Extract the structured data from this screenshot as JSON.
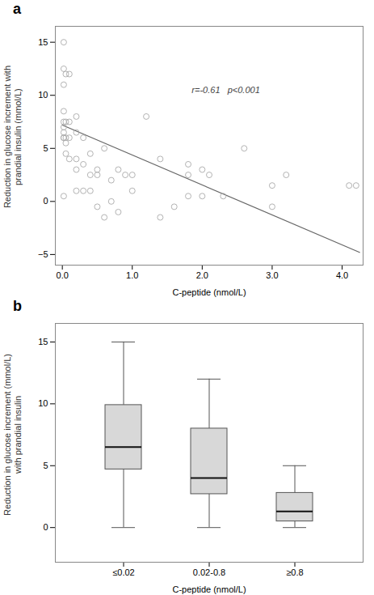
{
  "chart_data": [
    {
      "type": "scatter",
      "title": "a",
      "x": [
        0.02,
        0.02,
        0.02,
        0.02,
        0.02,
        0.02,
        0.02,
        0.02,
        0.02,
        0.02,
        0.05,
        0.05,
        0.05,
        0.05,
        0.05,
        0.1,
        0.1,
        0.1,
        0.1,
        0.2,
        0.2,
        0.2,
        0.2,
        0.2,
        0.3,
        0.3,
        0.3,
        0.4,
        0.4,
        0.4,
        0.5,
        0.5,
        0.5,
        0.6,
        0.6,
        0.7,
        0.7,
        0.8,
        0.8,
        0.9,
        1.0,
        1.0,
        1.2,
        1.4,
        1.4,
        1.6,
        1.8,
        1.8,
        1.8,
        2.0,
        2.0,
        2.1,
        2.3,
        2.6,
        3.0,
        3.0,
        3.2,
        4.1,
        4.2
      ],
      "values": [
        0.5,
        6.0,
        6.0,
        6.5,
        7.0,
        7.5,
        8.5,
        11.0,
        12.5,
        15.0,
        4.5,
        5.5,
        6.0,
        7.5,
        12.0,
        4.0,
        6.0,
        7.5,
        12.0,
        1.0,
        3.0,
        4.0,
        6.5,
        8.0,
        1.0,
        3.5,
        6.0,
        1.0,
        2.5,
        4.5,
        -0.5,
        2.5,
        3.0,
        -1.5,
        5.0,
        0.0,
        2.0,
        -1.0,
        3.0,
        2.5,
        1.0,
        2.5,
        8.0,
        -1.5,
        4.0,
        -0.5,
        0.5,
        2.5,
        3.5,
        0.5,
        3.0,
        2.5,
        0.5,
        5.0,
        -0.5,
        1.5,
        2.5,
        1.5,
        1.5
      ],
      "color": "#aaaaaa",
      "fit_line": {
        "x": [
          0.0,
          4.25
        ],
        "values": [
          7.2,
          -4.8
        ],
        "color": "#666666"
      },
      "annotations": [
        {
          "text": "r=-0.61   p<0.001",
          "x": 1.85,
          "y": 10.5,
          "color": "#444444"
        }
      ],
      "xlabel": "C-peptide (nmol/L)",
      "ylabel": "Reduction in glucose increment with\nprandial insulin (mmol/L)",
      "xlim": [
        -0.1,
        4.3
      ],
      "ylim": [
        -6.0,
        16.5
      ],
      "xticks": [
        0,
        1,
        2,
        3,
        4
      ],
      "yticks": [
        -5,
        0,
        5,
        10,
        15
      ]
    },
    {
      "type": "box",
      "title": "b",
      "categories": [
        "≤0.02",
        "0.02-0.8",
        "≥0.8"
      ],
      "medians": [
        6.5,
        4.0,
        1.3
      ],
      "q1": [
        4.7,
        2.7,
        0.5
      ],
      "q3": [
        9.9,
        8.0,
        2.8
      ],
      "whislo": [
        0.0,
        0.0,
        0.0
      ],
      "whishi": [
        15.0,
        12.0,
        5.0
      ],
      "color": "#d8d8d8",
      "edge_color": "#555555",
      "median_color": "#111111",
      "xlabel": "C-peptide (nmol/L)",
      "ylabel": "Reduction in glucose increment (mmol/L)\nwith prandial insulin",
      "ylim": [
        -2.8,
        16.5
      ],
      "yticks": [
        0,
        5,
        10,
        15
      ]
    }
  ]
}
